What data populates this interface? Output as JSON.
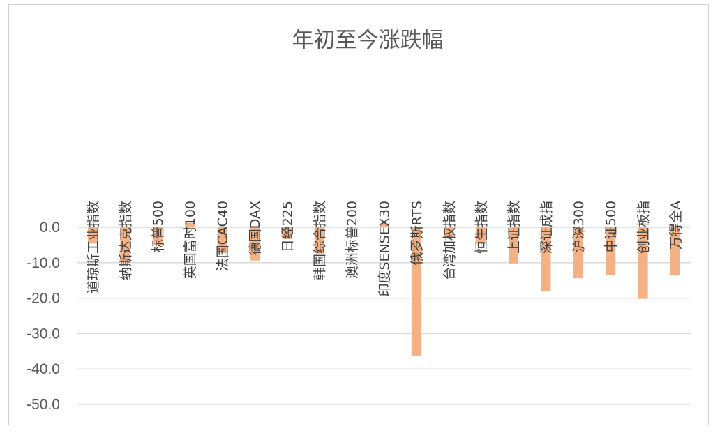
{
  "chart_data": {
    "type": "bar",
    "title": "年初至今涨跌幅",
    "xlabel": "",
    "ylabel": "",
    "ylim": [
      -50,
      0
    ],
    "yticks": [
      0,
      -10,
      -20,
      -30,
      -40,
      -50
    ],
    "ytick_labels": [
      "0.0",
      "-10.0",
      "-20.0",
      "-30.0",
      "-40.0",
      "-50.0"
    ],
    "grid": true,
    "legend": "none",
    "bar_color": "#f4b183",
    "categories": [
      "道琼斯工业指数",
      "纳斯达克指数",
      "标普500",
      "英国富时100",
      "法国CAC40",
      "德国DAX",
      "日经225",
      "韩国综合指数",
      "澳洲标普200",
      "印度SENSEX30",
      "俄罗斯RTS",
      "台湾加权指数",
      "恒生指数",
      "上证指数",
      "深证成指",
      "沪深300",
      "中证500",
      "创业板指",
      "万得全A"
    ],
    "values": [
      -4.6,
      -9.9,
      -5.1,
      1.3,
      -7.2,
      -9.4,
      -3.3,
      -7.4,
      -0.2,
      1.1,
      -36.2,
      -2.7,
      -4.7,
      -10.2,
      -18.1,
      -14.4,
      -13.4,
      -20.2,
      -13.6
    ]
  }
}
